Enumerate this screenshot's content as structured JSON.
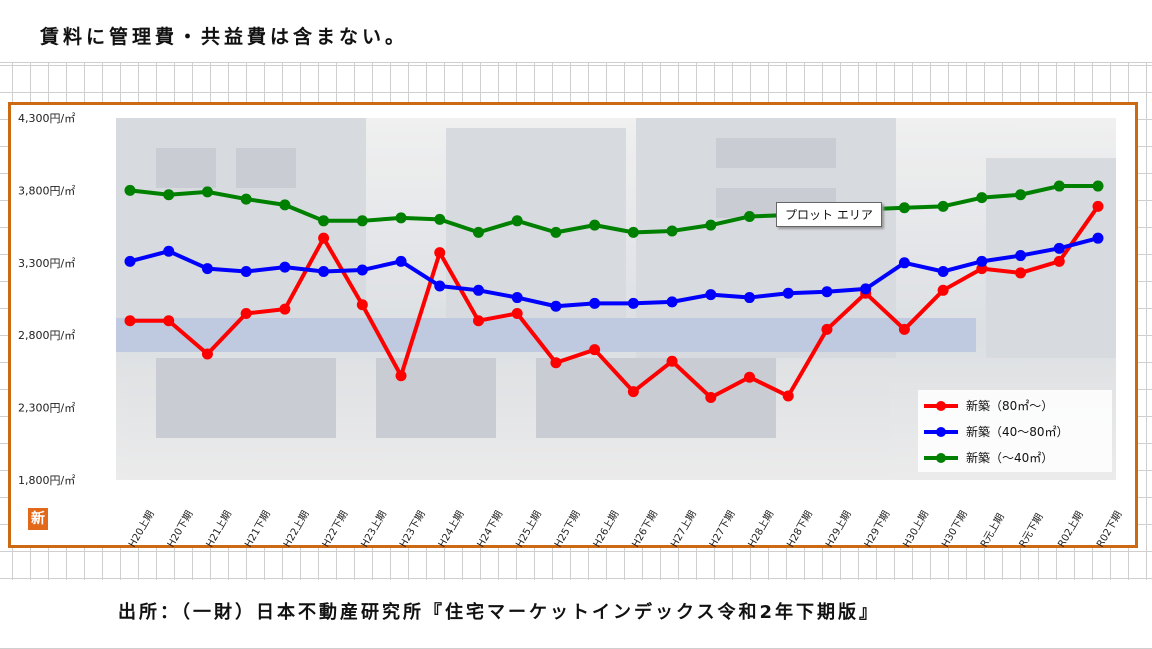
{
  "note": "賃料に管理費・共益費は含まない。",
  "source": "出所：（一財）日本不動産研究所『住宅マーケットインデックス令和2年下期版』",
  "tooltip": "プロット エリア",
  "badge": "新",
  "colors": {
    "red": "#ff0000",
    "blue": "#0000ff",
    "green": "#008000",
    "frame": "#cc6a14"
  },
  "chart_data": {
    "type": "line",
    "ylim": [
      1800,
      4300
    ],
    "yticks": [
      "4,300円/㎡",
      "3,800円/㎡",
      "3,300円/㎡",
      "2,800円/㎡",
      "2,300円/㎡",
      "1,800円/㎡"
    ],
    "ytick_values": [
      4300,
      3800,
      3300,
      2800,
      2300,
      1800
    ],
    "categories": [
      "H20上期",
      "H20下期",
      "H21上期",
      "H21下期",
      "H22上期",
      "H22下期",
      "H23上期",
      "H23下期",
      "H24上期",
      "H24下期",
      "H25上期",
      "H25下期",
      "H26上期",
      "H26下期",
      "H27上期",
      "H27下期",
      "H28上期",
      "H28下期",
      "H29上期",
      "H29下期",
      "H30上期",
      "H30下期",
      "R元上期",
      "R元下期",
      "R02上期",
      "R02下期"
    ],
    "legend_position": "bottom-right",
    "grid": false,
    "series": [
      {
        "name": "新築（80㎡～）",
        "color": "#ff0000",
        "values": [
          2900,
          2900,
          2670,
          2950,
          2980,
          3470,
          3010,
          2520,
          3370,
          2900,
          2950,
          2610,
          2700,
          2410,
          2620,
          2370,
          2510,
          2380,
          2840,
          3090,
          2840,
          3110,
          3260,
          3230,
          3310,
          3690
        ]
      },
      {
        "name": "新築（40～80㎡）",
        "color": "#0000ff",
        "values": [
          3310,
          3380,
          3260,
          3240,
          3270,
          3240,
          3250,
          3310,
          3140,
          3110,
          3060,
          3000,
          3020,
          3020,
          3030,
          3080,
          3060,
          3090,
          3100,
          3120,
          3300,
          3240,
          3310,
          3350,
          3400,
          3470
        ]
      },
      {
        "name": "新築（～40㎡）",
        "color": "#008000",
        "values": [
          3800,
          3770,
          3790,
          3740,
          3700,
          3590,
          3590,
          3610,
          3600,
          3510,
          3590,
          3510,
          3560,
          3510,
          3520,
          3560,
          3620,
          3630,
          3640,
          3670,
          3680,
          3690,
          3750,
          3770,
          3830,
          3830
        ]
      }
    ]
  }
}
